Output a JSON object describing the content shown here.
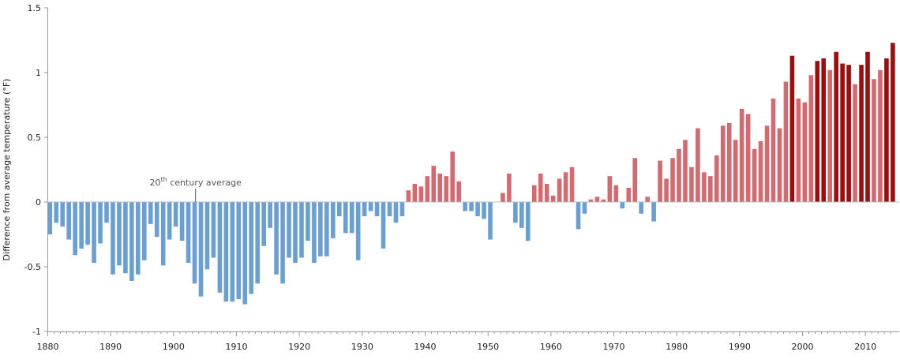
{
  "chart_data": {
    "type": "bar",
    "title": "",
    "ylabel": "Difference from average temperature (°F)",
    "xlabel": "",
    "ylim": [
      -1,
      1.5
    ],
    "xlim": [
      1880,
      2014
    ],
    "yticks": [
      -1,
      -0.5,
      0,
      0.5,
      1,
      1.5
    ],
    "ytick_labels": [
      "-1",
      "-0.5",
      "0",
      "0.5",
      "1",
      "1.5"
    ],
    "xticks": [
      1880,
      1890,
      1900,
      1910,
      1920,
      1930,
      1940,
      1950,
      1960,
      1970,
      1980,
      1990,
      2000,
      2010
    ],
    "xtick_labels": [
      "1880",
      "1890",
      "1900",
      "1910",
      "1920",
      "1930",
      "1940",
      "1950",
      "1960",
      "1970",
      "1980",
      "1990",
      "2000",
      "2010"
    ],
    "annotation": {
      "base": "20",
      "sup": "th",
      "rest": " century average",
      "year": 1903.5
    },
    "colors": {
      "negative": "#6a9fd4",
      "positive": "#d46a6f",
      "record": "#9b0e0e"
    },
    "highlight_years": [
      1998,
      2002,
      2003,
      2005,
      2006,
      2007,
      2009,
      2010,
      2013,
      2014
    ],
    "years": [
      1880,
      1881,
      1882,
      1883,
      1884,
      1885,
      1886,
      1887,
      1888,
      1889,
      1890,
      1891,
      1892,
      1893,
      1894,
      1895,
      1896,
      1897,
      1898,
      1899,
      1900,
      1901,
      1902,
      1903,
      1904,
      1905,
      1906,
      1907,
      1908,
      1909,
      1910,
      1911,
      1912,
      1913,
      1914,
      1915,
      1916,
      1917,
      1918,
      1919,
      1920,
      1921,
      1922,
      1923,
      1924,
      1925,
      1926,
      1927,
      1928,
      1929,
      1930,
      1931,
      1932,
      1933,
      1934,
      1935,
      1936,
      1937,
      1938,
      1939,
      1940,
      1941,
      1942,
      1943,
      1944,
      1945,
      1946,
      1947,
      1948,
      1949,
      1950,
      1951,
      1952,
      1953,
      1954,
      1955,
      1956,
      1957,
      1958,
      1959,
      1960,
      1961,
      1962,
      1963,
      1964,
      1965,
      1966,
      1967,
      1968,
      1969,
      1970,
      1971,
      1972,
      1973,
      1974,
      1975,
      1976,
      1977,
      1978,
      1979,
      1980,
      1981,
      1982,
      1983,
      1984,
      1985,
      1986,
      1987,
      1988,
      1989,
      1990,
      1991,
      1992,
      1993,
      1994,
      1995,
      1996,
      1997,
      1998,
      1999,
      2000,
      2001,
      2002,
      2003,
      2004,
      2005,
      2006,
      2007,
      2008,
      2009,
      2010,
      2011,
      2012,
      2013,
      2014
    ],
    "values": [
      -0.25,
      -0.16,
      -0.19,
      -0.29,
      -0.41,
      -0.36,
      -0.33,
      -0.47,
      -0.32,
      -0.16,
      -0.56,
      -0.49,
      -0.55,
      -0.61,
      -0.56,
      -0.45,
      -0.17,
      -0.27,
      -0.49,
      -0.29,
      -0.19,
      -0.3,
      -0.47,
      -0.63,
      -0.73,
      -0.52,
      -0.43,
      -0.7,
      -0.77,
      -0.77,
      -0.75,
      -0.79,
      -0.71,
      -0.63,
      -0.34,
      -0.2,
      -0.56,
      -0.63,
      -0.43,
      -0.47,
      -0.43,
      -0.3,
      -0.47,
      -0.42,
      -0.42,
      -0.28,
      -0.11,
      -0.24,
      -0.24,
      -0.45,
      -0.11,
      -0.07,
      -0.11,
      -0.36,
      -0.11,
      -0.16,
      -0.11,
      0.09,
      0.14,
      0.12,
      0.2,
      0.28,
      0.22,
      0.2,
      0.39,
      0.16,
      -0.07,
      -0.07,
      -0.11,
      -0.13,
      -0.29,
      0.0,
      0.07,
      0.22,
      -0.16,
      -0.2,
      -0.3,
      0.13,
      0.22,
      0.14,
      0.05,
      0.18,
      0.23,
      0.27,
      -0.21,
      -0.09,
      0.02,
      0.04,
      0.02,
      0.2,
      0.13,
      -0.05,
      0.11,
      0.34,
      -0.09,
      0.04,
      -0.15,
      0.32,
      0.18,
      0.34,
      0.41,
      0.48,
      0.27,
      0.57,
      0.23,
      0.2,
      0.36,
      0.59,
      0.61,
      0.48,
      0.72,
      0.68,
      0.41,
      0.47,
      0.59,
      0.8,
      0.57,
      0.93,
      1.13,
      0.8,
      0.77,
      0.98,
      1.09,
      1.11,
      1.02,
      1.16,
      1.07,
      1.06,
      0.91,
      1.06,
      1.16,
      0.95,
      1.02,
      1.11,
      1.23
    ]
  }
}
